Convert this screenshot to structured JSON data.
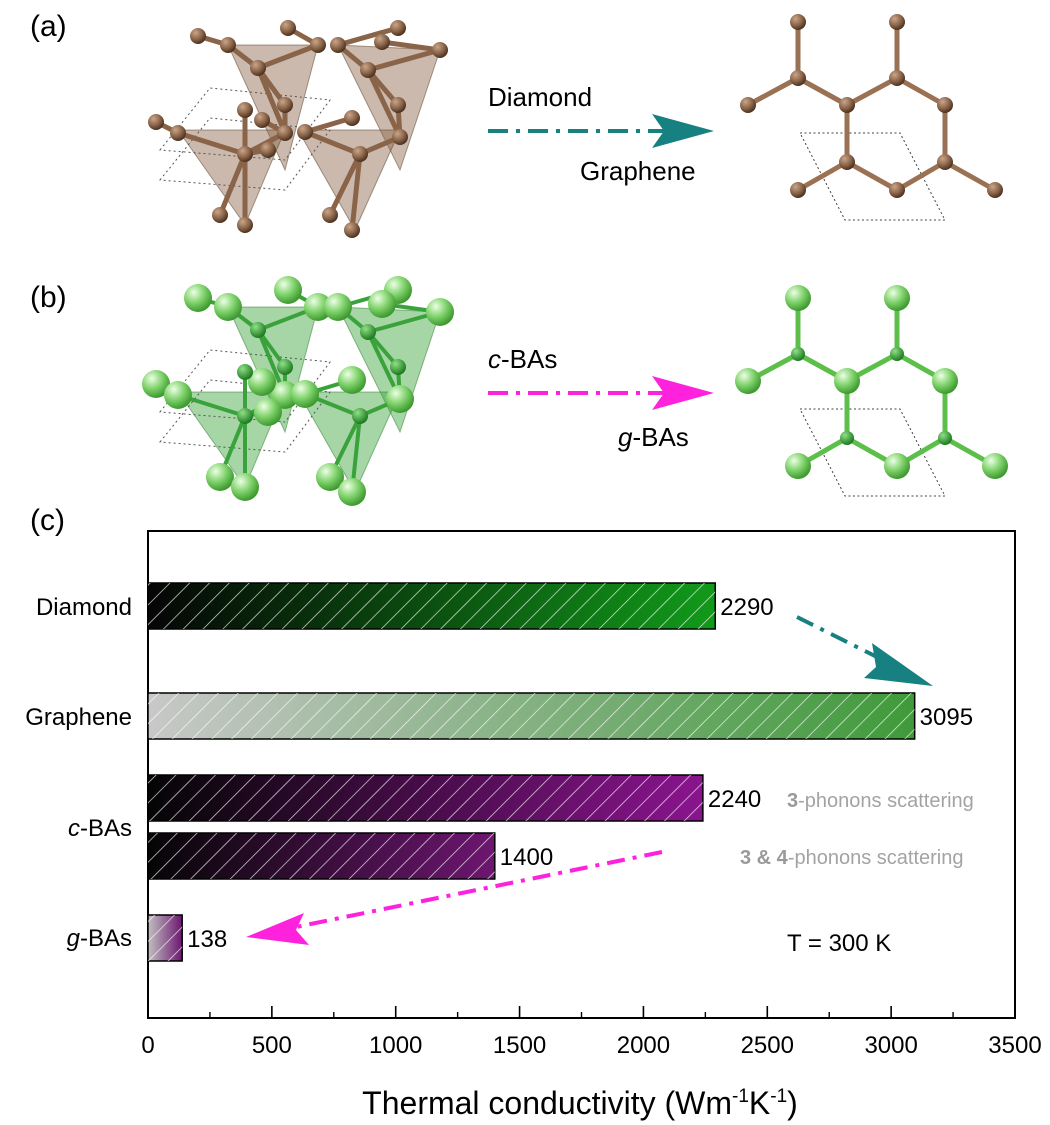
{
  "panels": {
    "a": {
      "label": "(a)",
      "from_label": "Diamond",
      "to_label": "Graphene",
      "atom_color": "#8a6448",
      "arrow_color": "#178080"
    },
    "b": {
      "label": "(b)",
      "from_prefix": "c",
      "from_suffix": "-BAs",
      "to_prefix": "g",
      "to_suffix": "-BAs",
      "atom_color": "#5cbf4a",
      "arrow_color": "#ff22dd"
    },
    "c": {
      "label": "(c)"
    }
  },
  "chart_data": {
    "type": "bar",
    "orientation": "horizontal",
    "xlabel_main": "Thermal conductivity (Wm",
    "xlabel_exp1": "-1",
    "xlabel_mid": "K",
    "xlabel_exp2": "-1",
    "xlabel_end": ")",
    "xlim": [
      0,
      3500
    ],
    "xticks": [
      "0",
      "500",
      "1000",
      "1500",
      "2000",
      "2500",
      "3000",
      "3500"
    ],
    "grid": false,
    "categories": [
      {
        "prefix": "",
        "suffix": "Diamond"
      },
      {
        "prefix": "",
        "suffix": "Graphene"
      },
      {
        "prefix": "c",
        "suffix": "-BAs"
      },
      {
        "prefix": "g",
        "suffix": "-BAs"
      }
    ],
    "bars": [
      {
        "category": "Diamond",
        "value": 2290,
        "label": "2290",
        "color": "#119a1a"
      },
      {
        "category": "Graphene",
        "value": 3095,
        "label": "3095",
        "color": "#3f9a3a"
      },
      {
        "category": "c-BAs",
        "value": 2240,
        "label": "2240",
        "color": "#8a148e"
      },
      {
        "category": "c-BAs",
        "value": 1400,
        "label": "1400",
        "color": "#6d1670"
      },
      {
        "category": "g-BAs",
        "value": 138,
        "label": "138",
        "color": "#6d1670"
      }
    ],
    "annotations": {
      "scatter3_bold": "3",
      "scatter3_rest": "-phonons scattering",
      "scatter34_bold": "3 & 4",
      "scatter34_rest": "-phonons scattering",
      "temperature": "T = 300 K"
    },
    "arrows": {
      "diamond_to_graphene_color": "#178080",
      "cbas_to_gbas_color": "#ff22dd"
    }
  }
}
